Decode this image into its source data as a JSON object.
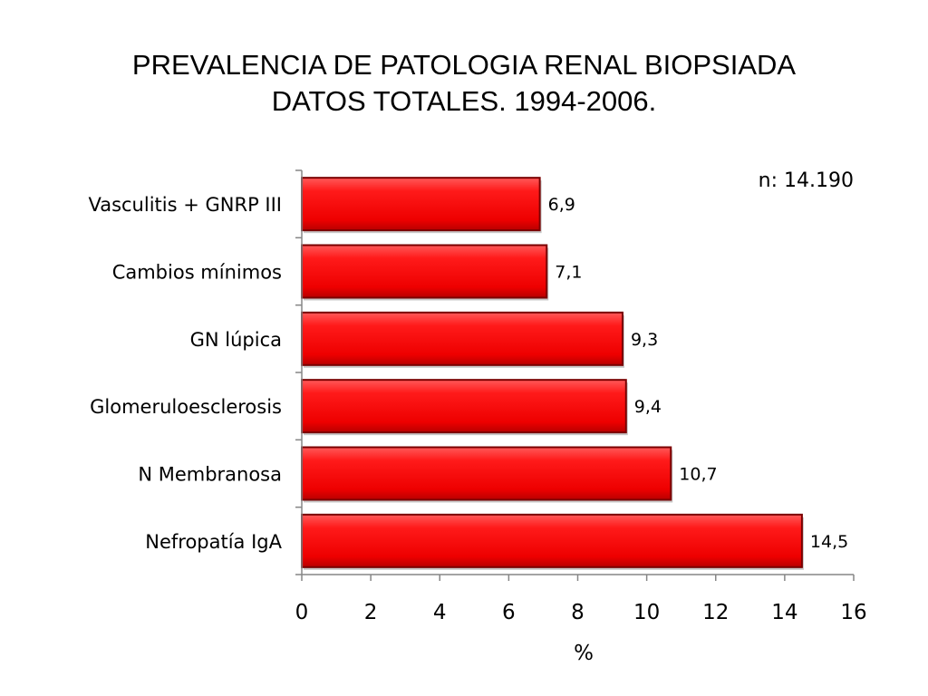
{
  "chart_data": {
    "type": "bar",
    "orientation": "horizontal",
    "title": [
      "PREVALENCIA DE PATOLOGIA RENAL BIOPSIADA",
      "DATOS TOTALES. 1994-2006."
    ],
    "annotation": "n: 14.190",
    "categories": [
      "Vasculitis + GNRP III",
      "Cambios mínimos",
      "GN lúpica",
      "Glomeruloesclerosis",
      "N  Membranosa",
      "Nefropatía IgA"
    ],
    "values": [
      6.9,
      7.1,
      9.3,
      9.4,
      10.7,
      14.5
    ],
    "value_labels": [
      "6,9",
      "7,1",
      "9,3",
      "9,4",
      "10,7",
      "14,5"
    ],
    "xlabel": "%",
    "ylabel": "",
    "xlim": [
      0,
      16
    ],
    "xticks": [
      0,
      2,
      4,
      6,
      8,
      10,
      12,
      14,
      16
    ],
    "grid": false,
    "legend": "none",
    "colors": {
      "bar": "#ff0000",
      "bar_edge": "#7a0000",
      "axis": "#868686"
    }
  }
}
